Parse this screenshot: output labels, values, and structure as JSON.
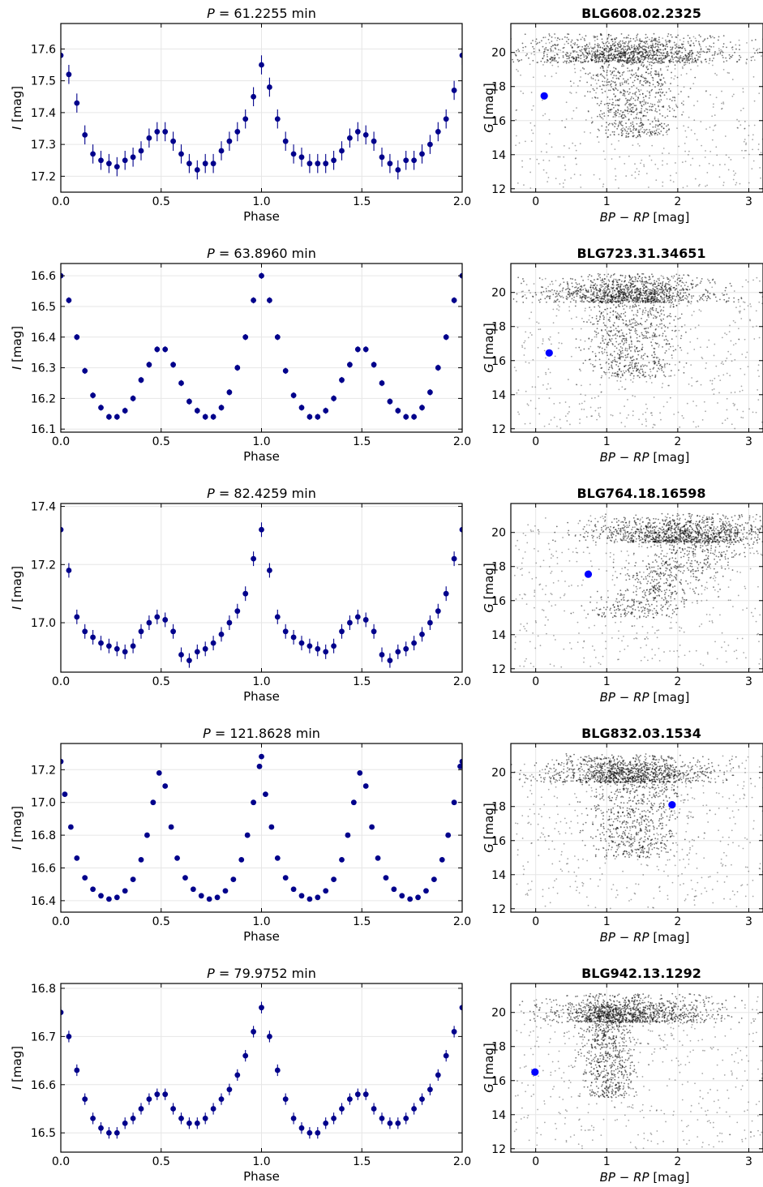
{
  "chart_data": [
    {
      "type": "scatter",
      "panel": "light-curve",
      "title": "P = 61.2255 min",
      "title_prefix": "P",
      "title_rest": " = 61.2255 min",
      "xlabel": "Phase",
      "ylabel_main": "I",
      "ylabel_unit": " [mag]",
      "xlim": [
        0,
        2
      ],
      "ylim": [
        17.68,
        17.15
      ],
      "y_inverted": true,
      "xticks": [
        0,
        0.5,
        1,
        1.5,
        2
      ],
      "xtick_labels": [
        "0.0",
        "0.5",
        "1.0",
        "1.5",
        "2.0"
      ],
      "yticks": [
        17.2,
        17.3,
        17.4,
        17.5,
        17.6
      ],
      "ytick_labels": [
        "17.2",
        "17.3",
        "17.4",
        "17.5",
        "17.6"
      ],
      "marker_color": "#00008b",
      "error_bars": true,
      "error": 0.03,
      "x": [
        0.0,
        0.04,
        0.08,
        0.12,
        0.16,
        0.2,
        0.24,
        0.28,
        0.32,
        0.36,
        0.4,
        0.44,
        0.48,
        0.52,
        0.56,
        0.6,
        0.64,
        0.68,
        0.72,
        0.76,
        0.8,
        0.84,
        0.88,
        0.92,
        0.96,
        1.0,
        1.04,
        1.08,
        1.12,
        1.16,
        1.2,
        1.24,
        1.28,
        1.32,
        1.36,
        1.4,
        1.44,
        1.48,
        1.52,
        1.56,
        1.6,
        1.64,
        1.68,
        1.72,
        1.76,
        1.8,
        1.84,
        1.88,
        1.92,
        1.96,
        2.0
      ],
      "y": [
        17.58,
        17.52,
        17.43,
        17.33,
        17.27,
        17.25,
        17.24,
        17.23,
        17.25,
        17.26,
        17.28,
        17.32,
        17.34,
        17.34,
        17.31,
        17.27,
        17.24,
        17.22,
        17.24,
        17.24,
        17.28,
        17.31,
        17.34,
        17.38,
        17.45,
        17.55,
        17.48,
        17.38,
        17.31,
        17.27,
        17.26,
        17.24,
        17.24,
        17.24,
        17.25,
        17.28,
        17.32,
        17.34,
        17.33,
        17.31,
        17.26,
        17.24,
        17.22,
        17.25,
        17.25,
        17.27,
        17.3,
        17.34,
        17.38,
        17.47,
        17.58
      ]
    },
    {
      "type": "scatter",
      "panel": "cmd",
      "title": "BLG608.02.2325",
      "xlabel_main": "BP − RP",
      "xlabel_unit": " [mag]",
      "ylabel_main": "G",
      "ylabel_unit": " [mag]",
      "xlim": [
        -0.35,
        3.2
      ],
      "ylim": [
        21.7,
        11.8
      ],
      "y_inverted": true,
      "xticks": [
        0,
        1,
        2,
        3
      ],
      "xtick_labels": [
        "0",
        "1",
        "2",
        "3"
      ],
      "yticks": [
        12,
        14,
        16,
        18,
        20
      ],
      "ytick_labels": [
        "12",
        "14",
        "16",
        "18",
        "20"
      ],
      "target": {
        "bp_rp": 0.12,
        "g": 17.45,
        "color": "#0000ff"
      },
      "field_color": "#000000",
      "field_shape": "wide"
    },
    {
      "type": "scatter",
      "panel": "light-curve",
      "title": "P = 63.8960 min",
      "title_prefix": "P",
      "title_rest": " = 63.8960 min",
      "xlabel": "Phase",
      "ylabel_main": "I",
      "ylabel_unit": " [mag]",
      "xlim": [
        0,
        2
      ],
      "ylim": [
        16.64,
        16.09
      ],
      "y_inverted": true,
      "xticks": [
        0,
        0.5,
        1,
        1.5,
        2
      ],
      "xtick_labels": [
        "0.0",
        "0.5",
        "1.0",
        "1.5",
        "2.0"
      ],
      "yticks": [
        16.1,
        16.2,
        16.3,
        16.4,
        16.5,
        16.6
      ],
      "ytick_labels": [
        "16.1",
        "16.2",
        "16.3",
        "16.4",
        "16.5",
        "16.6"
      ],
      "marker_color": "#00008b",
      "error_bars": true,
      "error": 0.01,
      "x": [
        0.0,
        0.04,
        0.08,
        0.12,
        0.16,
        0.2,
        0.24,
        0.28,
        0.32,
        0.36,
        0.4,
        0.44,
        0.48,
        0.52,
        0.56,
        0.6,
        0.64,
        0.68,
        0.72,
        0.76,
        0.8,
        0.84,
        0.88,
        0.92,
        0.96,
        1.0,
        1.04,
        1.08,
        1.12,
        1.16,
        1.2,
        1.24,
        1.28,
        1.32,
        1.36,
        1.4,
        1.44,
        1.48,
        1.52,
        1.56,
        1.6,
        1.64,
        1.68,
        1.72,
        1.76,
        1.8,
        1.84,
        1.88,
        1.92,
        1.96,
        2.0
      ],
      "y": [
        16.6,
        16.52,
        16.4,
        16.29,
        16.21,
        16.17,
        16.14,
        16.14,
        16.16,
        16.2,
        16.26,
        16.31,
        16.36,
        16.36,
        16.31,
        16.25,
        16.19,
        16.16,
        16.14,
        16.14,
        16.17,
        16.22,
        16.3,
        16.4,
        16.52,
        16.6,
        16.52,
        16.4,
        16.29,
        16.21,
        16.17,
        16.14,
        16.14,
        16.16,
        16.2,
        16.26,
        16.31,
        16.36,
        16.36,
        16.31,
        16.25,
        16.19,
        16.16,
        16.14,
        16.14,
        16.17,
        16.22,
        16.3,
        16.4,
        16.52,
        16.6
      ]
    },
    {
      "type": "scatter",
      "panel": "cmd",
      "title": "BLG723.31.34651",
      "xlabel_main": "BP − RP",
      "xlabel_unit": " [mag]",
      "ylabel_main": "G",
      "ylabel_unit": " [mag]",
      "xlim": [
        -0.35,
        3.2
      ],
      "ylim": [
        21.7,
        11.8
      ],
      "y_inverted": true,
      "xticks": [
        0,
        1,
        2,
        3
      ],
      "xtick_labels": [
        "0",
        "1",
        "2",
        "3"
      ],
      "yticks": [
        12,
        14,
        16,
        18,
        20
      ],
      "ytick_labels": [
        "12",
        "14",
        "16",
        "18",
        "20"
      ],
      "target": {
        "bp_rp": 0.19,
        "g": 16.45,
        "color": "#0000ff"
      },
      "field_color": "#000000",
      "field_shape": "narrow"
    },
    {
      "type": "scatter",
      "panel": "light-curve",
      "title": "P = 82.4259 min",
      "title_prefix": "P",
      "title_rest": " = 82.4259 min",
      "xlabel": "Phase",
      "ylabel_main": "I",
      "ylabel_unit": " [mag]",
      "xlim": [
        0,
        2
      ],
      "ylim": [
        17.41,
        16.83
      ],
      "y_inverted": true,
      "xticks": [
        0,
        0.5,
        1,
        1.5,
        2
      ],
      "xtick_labels": [
        "0.0",
        "0.5",
        "1.0",
        "1.5",
        "2.0"
      ],
      "yticks": [
        17.0,
        17.2,
        17.4
      ],
      "ytick_labels": [
        "17.0",
        "17.2",
        "17.4"
      ],
      "marker_color": "#00008b",
      "error_bars": true,
      "error": 0.025,
      "x": [
        0.0,
        0.04,
        0.08,
        0.12,
        0.16,
        0.2,
        0.24,
        0.28,
        0.32,
        0.36,
        0.4,
        0.44,
        0.48,
        0.52,
        0.56,
        0.6,
        0.64,
        0.68,
        0.72,
        0.76,
        0.8,
        0.84,
        0.88,
        0.92,
        0.96,
        1.0,
        1.04,
        1.08,
        1.12,
        1.16,
        1.2,
        1.24,
        1.28,
        1.32,
        1.36,
        1.4,
        1.44,
        1.48,
        1.52,
        1.56,
        1.6,
        1.64,
        1.68,
        1.72,
        1.76,
        1.8,
        1.84,
        1.88,
        1.92,
        1.96,
        2.0
      ],
      "y": [
        17.32,
        17.18,
        17.02,
        16.97,
        16.95,
        16.93,
        16.92,
        16.91,
        16.9,
        16.92,
        16.97,
        17.0,
        17.02,
        17.01,
        16.97,
        16.89,
        16.87,
        16.9,
        16.91,
        16.93,
        16.96,
        17.0,
        17.04,
        17.1,
        17.22,
        17.32,
        17.18,
        17.02,
        16.97,
        16.95,
        16.93,
        16.92,
        16.91,
        16.9,
        16.92,
        16.97,
        17.0,
        17.02,
        17.01,
        16.97,
        16.89,
        16.87,
        16.9,
        16.91,
        16.93,
        16.96,
        17.0,
        17.04,
        17.1,
        17.22,
        17.32
      ]
    },
    {
      "type": "scatter",
      "panel": "cmd",
      "title": "BLG764.18.16598",
      "xlabel_main": "BP − RP",
      "xlabel_unit": " [mag]",
      "ylabel_main": "G",
      "ylabel_unit": " [mag]",
      "xlim": [
        -0.35,
        3.2
      ],
      "ylim": [
        21.7,
        11.8
      ],
      "y_inverted": true,
      "xticks": [
        0,
        1,
        2,
        3
      ],
      "xtick_labels": [
        "0",
        "1",
        "2",
        "3"
      ],
      "yticks": [
        12,
        14,
        16,
        18,
        20
      ],
      "ytick_labels": [
        "12",
        "14",
        "16",
        "18",
        "20"
      ],
      "target": {
        "bp_rp": 0.74,
        "g": 17.55,
        "color": "#0000ff"
      },
      "field_color": "#000000",
      "field_shape": "reddened"
    },
    {
      "type": "scatter",
      "panel": "light-curve",
      "title": "P = 121.8628 min",
      "title_prefix": "P",
      "title_rest": " = 121.8628 min",
      "xlabel": "Phase",
      "ylabel_main": "I",
      "ylabel_unit": " [mag]",
      "xlim": [
        0,
        2
      ],
      "ylim": [
        17.36,
        16.33
      ],
      "y_inverted": true,
      "xticks": [
        0,
        0.5,
        1,
        1.5,
        2
      ],
      "xtick_labels": [
        "0.0",
        "0.5",
        "1.0",
        "1.5",
        "2.0"
      ],
      "yticks": [
        16.4,
        16.6,
        16.8,
        17.0,
        17.2
      ],
      "ytick_labels": [
        "16.4",
        "16.6",
        "16.8",
        "17.0",
        "17.2"
      ],
      "marker_color": "#00008b",
      "error_bars": false,
      "error": 0,
      "x": [
        0.0,
        0.02,
        0.05,
        0.08,
        0.12,
        0.16,
        0.2,
        0.24,
        0.28,
        0.32,
        0.36,
        0.4,
        0.43,
        0.46,
        0.49,
        0.52,
        0.55,
        0.58,
        0.62,
        0.66,
        0.7,
        0.74,
        0.78,
        0.82,
        0.86,
        0.9,
        0.93,
        0.96,
        0.99,
        1.0,
        1.02,
        1.05,
        1.08,
        1.12,
        1.16,
        1.2,
        1.24,
        1.28,
        1.32,
        1.36,
        1.4,
        1.43,
        1.46,
        1.49,
        1.52,
        1.55,
        1.58,
        1.62,
        1.66,
        1.7,
        1.74,
        1.78,
        1.82,
        1.86,
        1.9,
        1.93,
        1.96,
        1.99,
        2.0
      ],
      "y": [
        17.25,
        17.05,
        16.85,
        16.66,
        16.54,
        16.47,
        16.43,
        16.41,
        16.42,
        16.46,
        16.53,
        16.65,
        16.8,
        17.0,
        17.18,
        17.1,
        16.85,
        16.66,
        16.54,
        16.47,
        16.43,
        16.41,
        16.42,
        16.46,
        16.53,
        16.65,
        16.8,
        17.0,
        17.22,
        17.28,
        17.05,
        16.85,
        16.66,
        16.54,
        16.47,
        16.43,
        16.41,
        16.42,
        16.46,
        16.53,
        16.65,
        16.8,
        17.0,
        17.18,
        17.1,
        16.85,
        16.66,
        16.54,
        16.47,
        16.43,
        16.41,
        16.42,
        16.46,
        16.53,
        16.65,
        16.8,
        17.0,
        17.22,
        17.25
      ]
    },
    {
      "type": "scatter",
      "panel": "cmd",
      "title": "BLG832.03.1534",
      "xlabel_main": "BP − RP",
      "xlabel_unit": " [mag]",
      "ylabel_main": "G",
      "ylabel_unit": " [mag]",
      "xlim": [
        -0.35,
        3.2
      ],
      "ylim": [
        21.7,
        11.8
      ],
      "y_inverted": true,
      "xticks": [
        0,
        1,
        2,
        3
      ],
      "xtick_labels": [
        "0",
        "1",
        "2",
        "3"
      ],
      "yticks": [
        12,
        14,
        16,
        18,
        20
      ],
      "ytick_labels": [
        "12",
        "14",
        "16",
        "18",
        "20"
      ],
      "target": {
        "bp_rp": 1.92,
        "g": 18.1,
        "color": "#0000ff"
      },
      "field_color": "#000000",
      "field_shape": "double"
    },
    {
      "type": "scatter",
      "panel": "light-curve",
      "title": "P = 79.9752 min",
      "title_prefix": "P",
      "title_rest": " = 79.9752 min",
      "xlabel": "Phase",
      "ylabel_main": "I",
      "ylabel_unit": " [mag]",
      "xlim": [
        0,
        2
      ],
      "ylim": [
        16.81,
        16.46
      ],
      "y_inverted": true,
      "xticks": [
        0,
        0.5,
        1,
        1.5,
        2
      ],
      "xtick_labels": [
        "0.0",
        "0.5",
        "1.0",
        "1.5",
        "2.0"
      ],
      "yticks": [
        16.5,
        16.6,
        16.7,
        16.8
      ],
      "ytick_labels": [
        "16.5",
        "16.6",
        "16.7",
        "16.8"
      ],
      "marker_color": "#00008b",
      "error_bars": true,
      "error": 0.012,
      "x": [
        0.0,
        0.04,
        0.08,
        0.12,
        0.16,
        0.2,
        0.24,
        0.28,
        0.32,
        0.36,
        0.4,
        0.44,
        0.48,
        0.52,
        0.56,
        0.6,
        0.64,
        0.68,
        0.72,
        0.76,
        0.8,
        0.84,
        0.88,
        0.92,
        0.96,
        1.0,
        1.04,
        1.08,
        1.12,
        1.16,
        1.2,
        1.24,
        1.28,
        1.32,
        1.36,
        1.4,
        1.44,
        1.48,
        1.52,
        1.56,
        1.6,
        1.64,
        1.68,
        1.72,
        1.76,
        1.8,
        1.84,
        1.88,
        1.92,
        1.96,
        2.0
      ],
      "y": [
        16.75,
        16.7,
        16.63,
        16.57,
        16.53,
        16.51,
        16.5,
        16.5,
        16.52,
        16.53,
        16.55,
        16.57,
        16.58,
        16.58,
        16.55,
        16.53,
        16.52,
        16.52,
        16.53,
        16.55,
        16.57,
        16.59,
        16.62,
        16.66,
        16.71,
        16.76,
        16.7,
        16.63,
        16.57,
        16.53,
        16.51,
        16.5,
        16.5,
        16.52,
        16.53,
        16.55,
        16.57,
        16.58,
        16.58,
        16.55,
        16.53,
        16.52,
        16.52,
        16.53,
        16.55,
        16.57,
        16.59,
        16.62,
        16.66,
        16.71,
        16.76
      ]
    },
    {
      "type": "scatter",
      "panel": "cmd",
      "title": "BLG942.13.1292",
      "xlabel_main": "BP − RP",
      "xlabel_unit": " [mag]",
      "ylabel_main": "G",
      "ylabel_unit": " [mag]",
      "xlim": [
        -0.35,
        3.2
      ],
      "ylim": [
        21.7,
        11.8
      ],
      "y_inverted": true,
      "xticks": [
        0,
        1,
        2,
        3
      ],
      "xtick_labels": [
        "0",
        "1",
        "2",
        "3"
      ],
      "yticks": [
        12,
        14,
        16,
        18,
        20
      ],
      "ytick_labels": [
        "12",
        "14",
        "16",
        "18",
        "20"
      ],
      "target": {
        "bp_rp": -0.01,
        "g": 16.5,
        "color": "#0000ff"
      },
      "field_color": "#000000",
      "field_shape": "single"
    }
  ]
}
